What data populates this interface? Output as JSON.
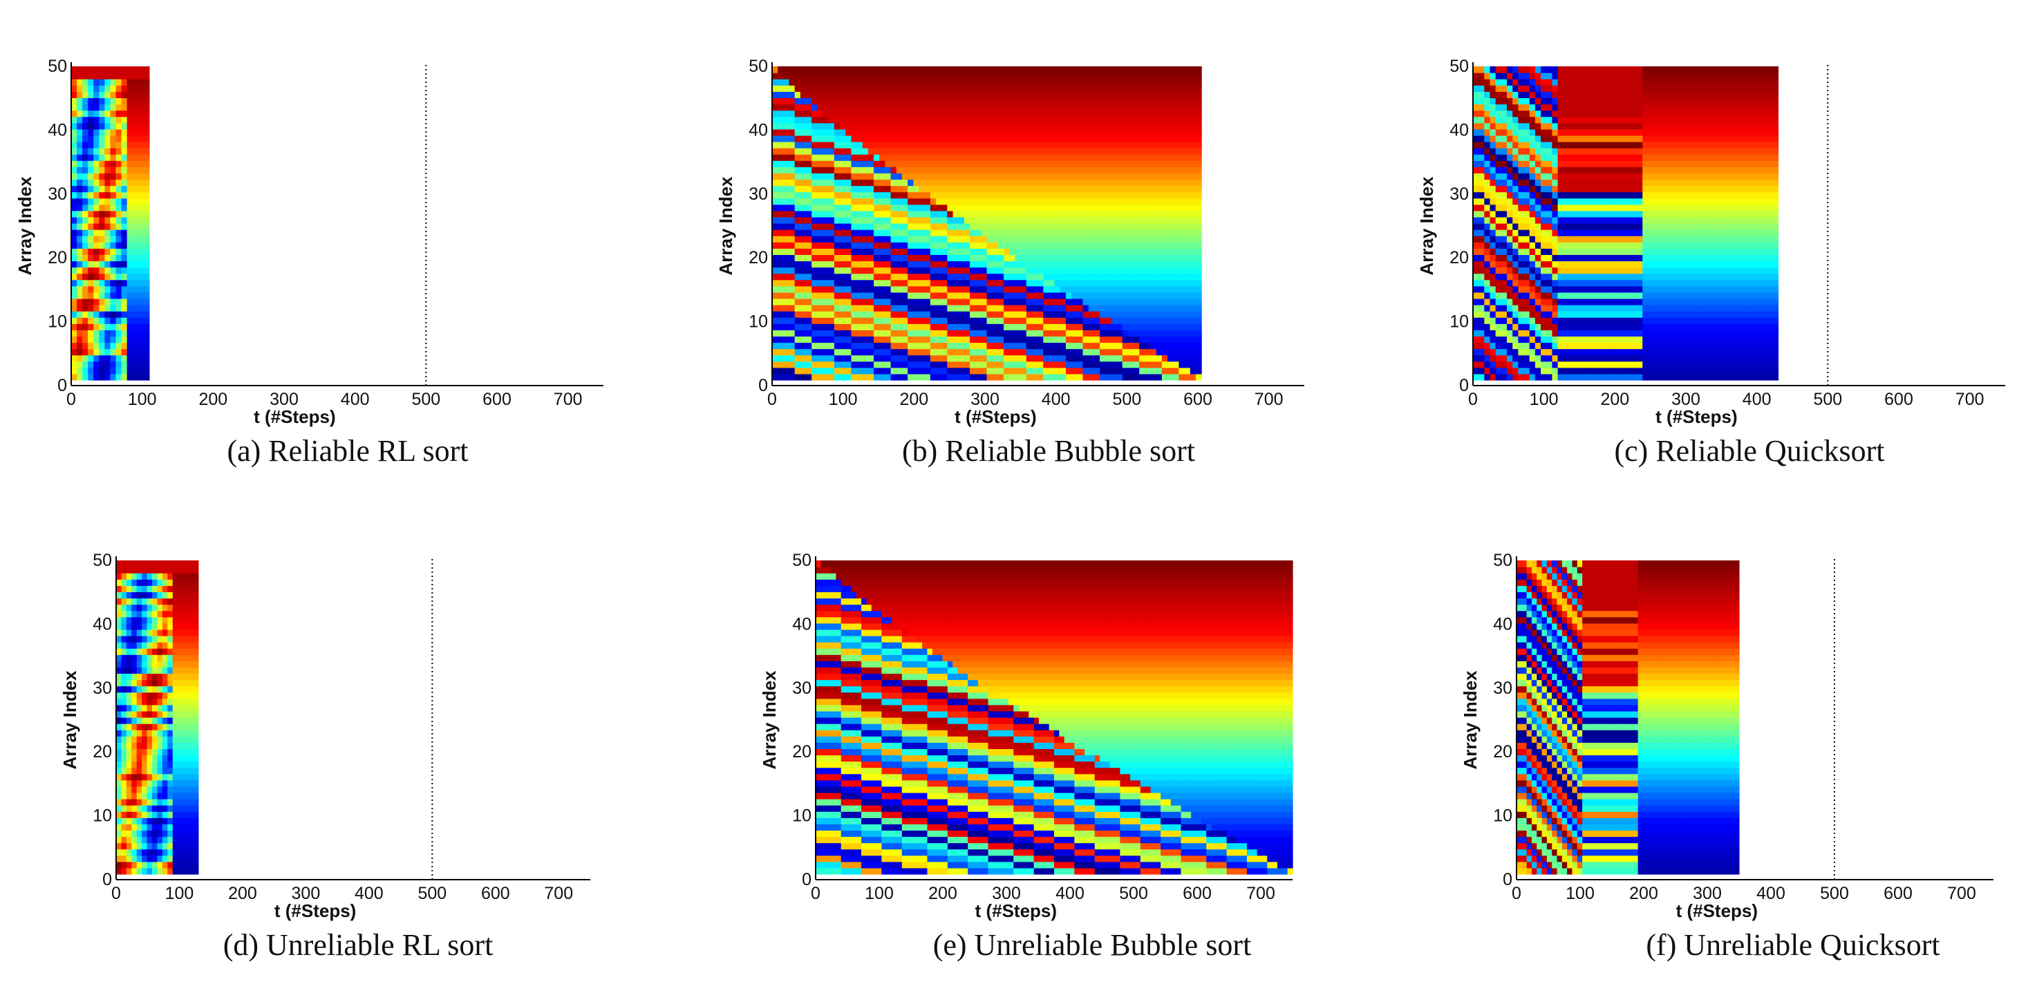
{
  "figure": {
    "xlabel": "t (#Steps)",
    "ylabel": "Array Index",
    "colormap": [
      "#00008f",
      "#0000ff",
      "#00ffff",
      "#ffff00",
      "#ff0000",
      "#800000"
    ]
  },
  "chart_data": [
    {
      "type": "heatmap",
      "caption": "(a) Reliable RL sort",
      "xlabel": "t (#Steps)",
      "ylabel": "Array Index",
      "xticks": [
        0,
        100,
        200,
        300,
        400,
        500,
        600,
        700
      ],
      "yticks": [
        0,
        10,
        20,
        30,
        40,
        50
      ],
      "xlim": [
        0,
        750
      ],
      "ylim": [
        0,
        50
      ],
      "steps": 110,
      "array_size": 50,
      "reference_line_x": 500,
      "pattern": "rl"
    },
    {
      "type": "heatmap",
      "caption": "(b) Reliable Bubble sort",
      "xlabel": "t (#Steps)",
      "ylabel": "Array Index",
      "xticks": [
        0,
        100,
        200,
        300,
        400,
        500,
        600,
        700
      ],
      "yticks": [
        0,
        10,
        20,
        30,
        40,
        50
      ],
      "xlim": [
        0,
        750
      ],
      "ylim": [
        0,
        50
      ],
      "steps": 605,
      "array_size": 50,
      "reference_line_x": null,
      "pattern": "bubble"
    },
    {
      "type": "heatmap",
      "caption": "(c) Reliable Quicksort",
      "xlabel": "t (#Steps)",
      "ylabel": "Array Index",
      "xticks": [
        0,
        100,
        200,
        300,
        400,
        500,
        600,
        700
      ],
      "yticks": [
        0,
        10,
        20,
        30,
        40,
        50
      ],
      "xlim": [
        0,
        750
      ],
      "ylim": [
        0,
        50
      ],
      "steps": 430,
      "array_size": 50,
      "reference_line_x": 500,
      "pattern": "quick"
    },
    {
      "type": "heatmap",
      "caption": "(d) Unreliable RL sort",
      "xlabel": "t (#Steps)",
      "ylabel": "Array Index",
      "xticks": [
        0,
        100,
        200,
        300,
        400,
        500,
        600,
        700
      ],
      "yticks": [
        0,
        10,
        20,
        30,
        40,
        50
      ],
      "xlim": [
        0,
        750
      ],
      "ylim": [
        0,
        50
      ],
      "steps": 130,
      "array_size": 50,
      "reference_line_x": 500,
      "pattern": "rl"
    },
    {
      "type": "heatmap",
      "caption": "(e) Unreliable Bubble sort",
      "xlabel": "t (#Steps)",
      "ylabel": "Array Index",
      "xticks": [
        0,
        100,
        200,
        300,
        400,
        500,
        600,
        700
      ],
      "yticks": [
        0,
        10,
        20,
        30,
        40,
        50
      ],
      "xlim": [
        0,
        750
      ],
      "ylim": [
        0,
        50
      ],
      "steps": 750,
      "array_size": 50,
      "reference_line_x": null,
      "pattern": "bubble"
    },
    {
      "type": "heatmap",
      "caption": "(f) Unreliable Quicksort",
      "xlabel": "t (#Steps)",
      "ylabel": "Array Index",
      "xticks": [
        0,
        100,
        200,
        300,
        400,
        500,
        600,
        700
      ],
      "yticks": [
        0,
        10,
        20,
        30,
        40,
        50
      ],
      "xlim": [
        0,
        750
      ],
      "ylim": [
        0,
        50
      ],
      "steps": 350,
      "array_size": 50,
      "reference_line_x": 500,
      "pattern": "quick"
    }
  ]
}
